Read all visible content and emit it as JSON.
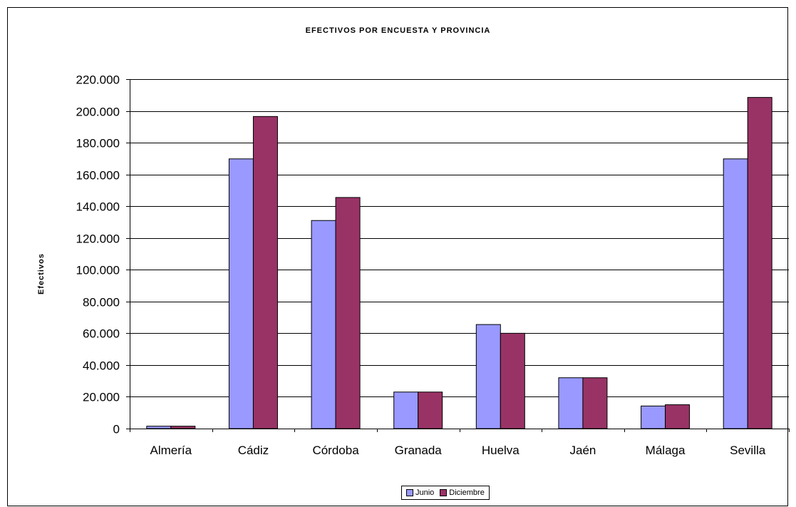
{
  "chart_data": {
    "type": "bar",
    "title": "EFECTIVOS POR ENCUESTA Y PROVINCIA",
    "xlabel": "",
    "ylabel": "Efectivos",
    "categories": [
      "Almería",
      "Cádiz",
      "Córdoba",
      "Granada",
      "Huelva",
      "Jaén",
      "Málaga",
      "Sevilla"
    ],
    "series": [
      {
        "name": "Junio",
        "color": "#9999ff",
        "values": [
          1500,
          169800,
          131000,
          23000,
          65500,
          32000,
          14200,
          169800
        ]
      },
      {
        "name": "Diciembre",
        "color": "#993366",
        "values": [
          1500,
          196500,
          145500,
          23000,
          60000,
          32000,
          15000,
          208500
        ]
      }
    ],
    "ylim": [
      0,
      220000
    ],
    "yticks": [
      0,
      20000,
      40000,
      60000,
      80000,
      100000,
      120000,
      140000,
      160000,
      180000,
      200000,
      220000
    ],
    "ytick_labels": [
      "0",
      "20.000",
      "40.000",
      "60.000",
      "80.000",
      "100.000",
      "120.000",
      "140.000",
      "160.000",
      "180.000",
      "200.000",
      "220.000"
    ],
    "grid": true,
    "legend_position": "bottom-center"
  }
}
